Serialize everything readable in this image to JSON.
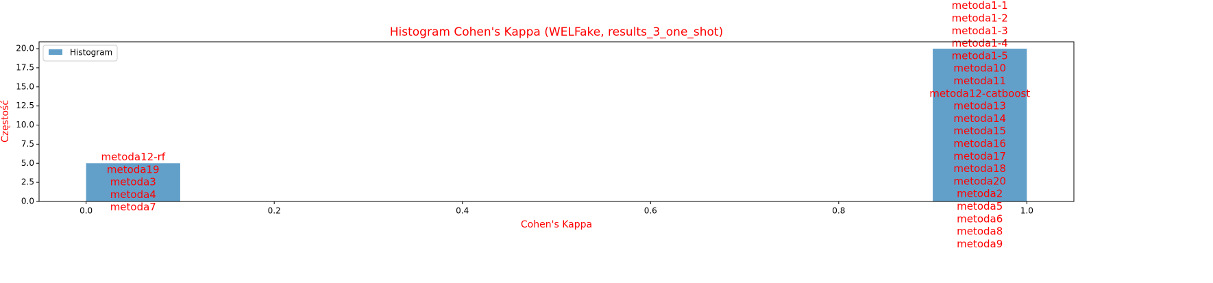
{
  "chart_data": {
    "type": "histogram",
    "title": "Histogram Cohen's Kappa (WELFake, results_3_one_shot)",
    "x_label": "Cohen's Kappa",
    "y_label": "Częstość",
    "bins": [
      0.0,
      0.1,
      0.2,
      0.3,
      0.4,
      0.5,
      0.6,
      0.7,
      0.8,
      0.9,
      1.0
    ],
    "series": [
      {
        "name": "Histogram",
        "color": "#1f77b4",
        "opacity": 0.7,
        "values": [
          5,
          0,
          0,
          0,
          0,
          0,
          0,
          0,
          0,
          20
        ]
      }
    ],
    "bar_labels": [
      [
        "metoda12-rf",
        "metoda19",
        "metoda3",
        "metoda4",
        "metoda7"
      ],
      [],
      [],
      [],
      [],
      [],
      [],
      [],
      [],
      [
        "metoda1-1",
        "metoda1-2",
        "metoda1-3",
        "metoda1-4",
        "metoda1-5",
        "metoda10",
        "metoda11",
        "metoda12-catboost",
        "metoda13",
        "metoda14",
        "metoda15",
        "metoda16",
        "metoda17",
        "metoda18",
        "metoda20",
        "metoda2",
        "metoda5",
        "metoda6",
        "metoda8",
        "metoda9"
      ]
    ],
    "text_color": "#ff0000",
    "legend": "upper left",
    "xlim": [
      -0.05,
      1.05
    ],
    "ylim": [
      0,
      20.9
    ],
    "xticks": [
      {
        "value": 0,
        "label": "0.0"
      },
      {
        "value": 0.2,
        "label": "0.2"
      },
      {
        "value": 0.4,
        "label": "0.4"
      },
      {
        "value": 0.6,
        "label": "0.6"
      },
      {
        "value": 0.8,
        "label": "0.8"
      },
      {
        "value": 1,
        "label": "1.0"
      }
    ],
    "yticks": [
      {
        "value": 0,
        "label": "0.0"
      },
      {
        "value": 2.5,
        "label": "2.5"
      },
      {
        "value": 5,
        "label": "5.0"
      },
      {
        "value": 7.5,
        "label": "7.5"
      },
      {
        "value": 10,
        "label": "10.0"
      },
      {
        "value": 12.5,
        "label": "12.5"
      },
      {
        "value": 15,
        "label": "15.0"
      },
      {
        "value": 17.5,
        "label": "17.5"
      },
      {
        "value": 20,
        "label": "20.0"
      }
    ]
  }
}
